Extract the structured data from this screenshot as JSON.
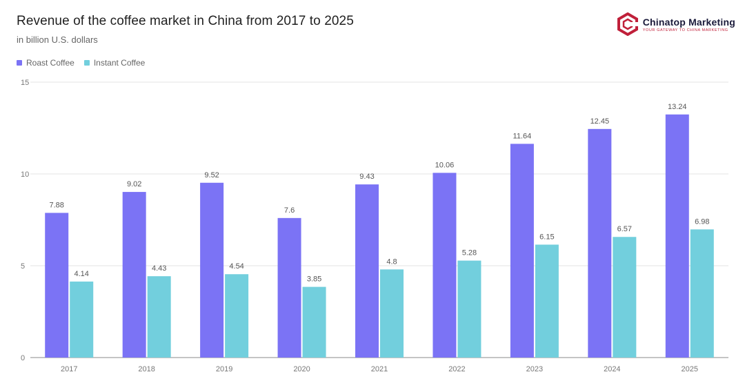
{
  "header": {
    "title": "Revenue of the coffee market in China from 2017 to 2025",
    "subtitle": "in billion U.S. dollars"
  },
  "brand": {
    "name": "Chinatop Marketing",
    "tagline": "YOUR GATEWAY TO CHINA MARKETING",
    "icon": "hexagon-logo-icon",
    "color": "#c0203a"
  },
  "chart_data": {
    "type": "bar",
    "title": "Revenue of the coffee market in China from 2017 to 2025",
    "subtitle": "in billion U.S. dollars",
    "categories": [
      "2017",
      "2018",
      "2019",
      "2020",
      "2021",
      "2022",
      "2023",
      "2024",
      "2025"
    ],
    "series": [
      {
        "name": "Roast Coffee",
        "color": "#7b73f5",
        "values": [
          7.88,
          9.02,
          9.52,
          7.6,
          9.43,
          10.06,
          11.64,
          12.45,
          13.24
        ]
      },
      {
        "name": "Instant Coffee",
        "color": "#72cfdd",
        "values": [
          4.14,
          4.43,
          4.54,
          3.85,
          4.8,
          5.28,
          6.15,
          6.57,
          6.98
        ]
      }
    ],
    "ylim": [
      0,
      15
    ],
    "yticks": [
      0,
      5,
      10,
      15
    ],
    "grid": true,
    "legend": "top-left"
  }
}
